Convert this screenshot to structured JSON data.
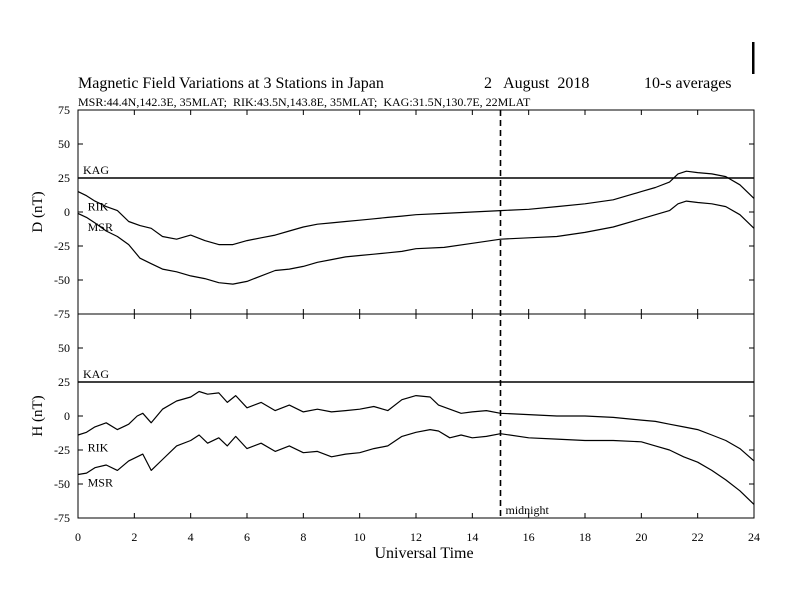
{
  "chart_data": {
    "type": "line",
    "title": "Magnetic Field Variations at 3 Stations in Japan",
    "date_label": "2   August  2018",
    "averaging_label": "10-s averages",
    "subtitle": "MSR:44.4N,142.3E, 35MLAT;  RIK:43.5N,143.8E, 35MLAT;  KAG:31.5N,130.7E, 22MLAT",
    "xlabel": "Universal Time",
    "xlim": [
      0,
      24
    ],
    "xticks": [
      0,
      2,
      4,
      6,
      8,
      10,
      12,
      14,
      16,
      18,
      20,
      22,
      24
    ],
    "midnight_ut": 15,
    "midnight_label": "midnight",
    "panels": [
      {
        "ylabel": "D (nT)",
        "ylim": [
          -75,
          75
        ],
        "yticks": [
          75,
          50,
          25,
          0,
          -25,
          -50,
          -75
        ],
        "baseline": {
          "name": "KAG",
          "value": 25
        },
        "series": [
          {
            "name": "RIK",
            "label_at": [
              0.2,
              4
            ],
            "x": [
              0,
              0.3,
              0.6,
              1.0,
              1.4,
              1.8,
              2.2,
              2.6,
              3.0,
              3.5,
              4.0,
              4.5,
              5.0,
              5.5,
              6.0,
              6.5,
              7.0,
              7.5,
              8.0,
              8.5,
              9.0,
              9.5,
              10.0,
              10.5,
              11.0,
              11.5,
              12.0,
              13.0,
              14.0,
              15.0,
              16.0,
              17.0,
              18.0,
              19.0,
              20.0,
              20.5,
              21.0,
              21.3,
              21.6,
              22.0,
              22.5,
              23.0,
              23.5,
              24.0
            ],
            "y": [
              15,
              12,
              8,
              4,
              1,
              -7,
              -10,
              -12,
              -18,
              -20,
              -17,
              -21,
              -24,
              -24,
              -21,
              -19,
              -17,
              -14,
              -11,
              -9,
              -8,
              -7,
              -6,
              -5,
              -4,
              -3,
              -2,
              -1,
              0,
              1,
              2,
              4,
              6,
              9,
              15,
              18,
              22,
              28,
              30,
              29,
              28,
              26,
              20,
              10
            ]
          },
          {
            "name": "MSR",
            "label_at": [
              0.2,
              -11
            ],
            "x": [
              0,
              0.3,
              0.6,
              1.0,
              1.4,
              1.8,
              2.2,
              2.6,
              3.0,
              3.5,
              4.0,
              4.5,
              5.0,
              5.5,
              6.0,
              6.5,
              7.0,
              7.5,
              8.0,
              8.5,
              9.0,
              9.5,
              10.0,
              10.5,
              11.0,
              11.5,
              12.0,
              13.0,
              14.0,
              15.0,
              16.0,
              17.0,
              18.0,
              19.0,
              20.0,
              20.5,
              21.0,
              21.3,
              21.6,
              22.0,
              22.5,
              23.0,
              23.5,
              24.0
            ],
            "y": [
              -1,
              -4,
              -8,
              -14,
              -18,
              -24,
              -34,
              -38,
              -42,
              -44,
              -47,
              -49,
              -52,
              -53,
              -51,
              -47,
              -43,
              -42,
              -40,
              -37,
              -35,
              -33,
              -32,
              -31,
              -30,
              -29,
              -27,
              -26,
              -23,
              -20,
              -19,
              -18,
              -15,
              -11,
              -5,
              -2,
              1,
              6,
              8,
              7,
              6,
              4,
              -2,
              -12
            ]
          }
        ]
      },
      {
        "ylabel": "H (nT)",
        "ylim": [
          -75,
          75
        ],
        "yticks": [
          75,
          50,
          25,
          0,
          -25,
          -50,
          -75
        ],
        "baseline": {
          "name": "KAG",
          "value": 25
        },
        "series": [
          {
            "name": "RIK",
            "label_at": [
              0.2,
              -23
            ],
            "x": [
              0,
              0.3,
              0.6,
              1.0,
              1.4,
              1.8,
              2.1,
              2.3,
              2.6,
              3.0,
              3.5,
              4.0,
              4.3,
              4.6,
              5.0,
              5.3,
              5.6,
              6.0,
              6.5,
              7.0,
              7.5,
              8.0,
              8.5,
              9.0,
              9.5,
              10.0,
              10.5,
              11.0,
              11.5,
              12.0,
              12.5,
              12.8,
              13.2,
              13.6,
              14.0,
              14.5,
              15.0,
              16.0,
              17.0,
              18.0,
              19.0,
              20.0,
              20.5,
              21.0,
              21.5,
              22.0,
              22.5,
              23.0,
              23.5,
              24.0
            ],
            "y": [
              -14,
              -12,
              -8,
              -5,
              -10,
              -6,
              0,
              2,
              -5,
              5,
              11,
              14,
              18,
              16,
              17,
              10,
              15,
              6,
              10,
              4,
              8,
              3,
              5,
              3,
              4,
              5,
              7,
              4,
              12,
              15,
              14,
              8,
              5,
              2,
              3,
              4,
              2,
              1,
              0,
              0,
              -1,
              -3,
              -4,
              -6,
              -8,
              -10,
              -14,
              -18,
              -24,
              -33
            ]
          },
          {
            "name": "MSR",
            "label_at": [
              0.2,
              -49
            ],
            "x": [
              0,
              0.3,
              0.6,
              1.0,
              1.4,
              1.8,
              2.1,
              2.3,
              2.6,
              3.0,
              3.5,
              4.0,
              4.3,
              4.6,
              5.0,
              5.3,
              5.6,
              6.0,
              6.5,
              7.0,
              7.5,
              8.0,
              8.5,
              9.0,
              9.5,
              10.0,
              10.5,
              11.0,
              11.5,
              12.0,
              12.5,
              12.8,
              13.2,
              13.6,
              14.0,
              14.5,
              15.0,
              16.0,
              17.0,
              18.0,
              19.0,
              20.0,
              20.5,
              21.0,
              21.5,
              22.0,
              22.5,
              23.0,
              23.5,
              24.0
            ],
            "y": [
              -43,
              -42,
              -38,
              -36,
              -40,
              -33,
              -30,
              -28,
              -40,
              -32,
              -22,
              -18,
              -14,
              -20,
              -16,
              -22,
              -15,
              -24,
              -20,
              -26,
              -22,
              -27,
              -26,
              -30,
              -28,
              -27,
              -24,
              -22,
              -15,
              -12,
              -10,
              -11,
              -16,
              -14,
              -16,
              -15,
              -13,
              -16,
              -17,
              -18,
              -18,
              -19,
              -22,
              -25,
              -30,
              -34,
              -40,
              -47,
              -55,
              -65
            ]
          }
        ]
      }
    ]
  }
}
